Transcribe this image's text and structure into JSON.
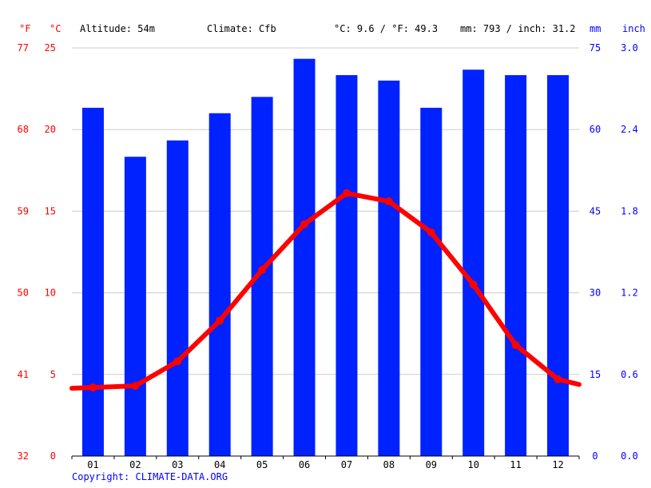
{
  "header": {
    "unit_f": "°F",
    "unit_c": "°C",
    "unit_mm": "mm",
    "unit_inch": "inch",
    "altitude": "Altitude: 54m",
    "climate": "Climate: Cfb",
    "temp_avg": "°C: 9.6 / °F: 49.3",
    "precip_total": "mm: 793 / inch: 31.2"
  },
  "footer": {
    "copyright": "Copyright: CLIMATE-DATA.ORG"
  },
  "colors": {
    "temperature": "#ff0000",
    "precipitation": "#0022ff",
    "grid": "#cccccc"
  },
  "chart_data": {
    "type": "bar+line",
    "categories": [
      "01",
      "02",
      "03",
      "04",
      "05",
      "06",
      "07",
      "08",
      "09",
      "10",
      "11",
      "12"
    ],
    "series": [
      {
        "kind": "bar",
        "axis": "mm",
        "values": [
          64,
          55,
          58,
          63,
          66,
          73,
          70,
          69,
          64,
          71,
          70,
          70
        ]
      },
      {
        "kind": "line",
        "axis": "°C",
        "values": [
          4.2,
          4.3,
          5.8,
          8.3,
          11.4,
          14.2,
          16.1,
          15.6,
          13.7,
          10.5,
          6.8,
          4.7
        ]
      }
    ],
    "y_left_c": {
      "ticks": [
        0,
        5,
        10,
        15,
        20,
        25
      ],
      "range": [
        0,
        25
      ]
    },
    "y_left_f": {
      "ticks": [
        32,
        41,
        50,
        59,
        68,
        77
      ]
    },
    "y_right_mm": {
      "ticks": [
        0,
        15,
        30,
        45,
        60,
        75
      ],
      "range": [
        0,
        75
      ]
    },
    "y_right_inch": {
      "ticks": [
        "0.0",
        "0.6",
        "1.2",
        "1.8",
        "2.4",
        "3.0"
      ]
    },
    "grid": true
  }
}
